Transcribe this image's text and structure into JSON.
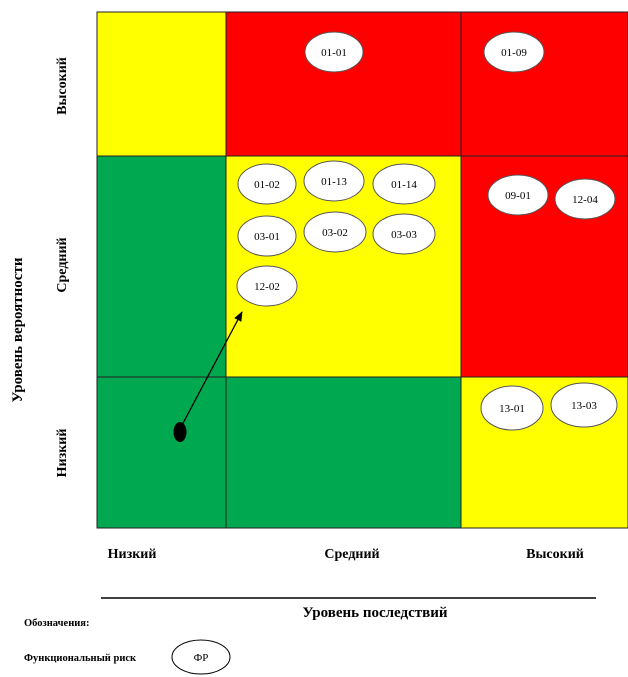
{
  "colors": {
    "green": "#00a84f",
    "yellow": "#ffff00",
    "red": "#ff0000",
    "grid": "#222222"
  },
  "matrix": {
    "grid": [
      [
        "yellow",
        "red",
        "red"
      ],
      [
        "green",
        "yellow",
        "red"
      ],
      [
        "green",
        "green",
        "yellow"
      ]
    ],
    "row_labels": [
      "Высокий",
      "Средний",
      "Низкий"
    ],
    "col_labels": [
      "Низкий",
      "Средний",
      "Высокий"
    ],
    "y_title": "Уровень вероятности",
    "x_title": "Уровень последствий",
    "risks": [
      {
        "id": "01-01",
        "row": 0,
        "col": 1
      },
      {
        "id": "01-09",
        "row": 0,
        "col": 2
      },
      {
        "id": "01-02",
        "row": 1,
        "col": 1
      },
      {
        "id": "01-13",
        "row": 1,
        "col": 1
      },
      {
        "id": "01-14",
        "row": 1,
        "col": 1
      },
      {
        "id": "03-01",
        "row": 1,
        "col": 1
      },
      {
        "id": "03-02",
        "row": 1,
        "col": 1
      },
      {
        "id": "03-03",
        "row": 1,
        "col": 1
      },
      {
        "id": "12-02",
        "row": 1,
        "col": 1
      },
      {
        "id": "09-01",
        "row": 1,
        "col": 2
      },
      {
        "id": "12-04",
        "row": 1,
        "col": 2
      },
      {
        "id": "13-01",
        "row": 2,
        "col": 2
      },
      {
        "id": "13-03",
        "row": 2,
        "col": 2
      }
    ],
    "arrow": {
      "from": "low-low",
      "to": "12-02"
    }
  },
  "legend": {
    "title": "Обозначения:",
    "item_label": "Функциональный риск",
    "item_symbol": "ФР"
  }
}
